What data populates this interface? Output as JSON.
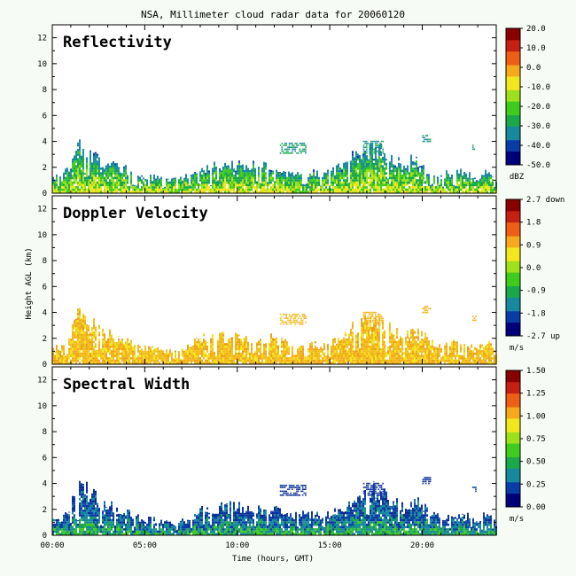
{
  "chart_data": {
    "type": "heatmap",
    "title": "NSA, Millimeter cloud radar data for 20060120",
    "xlabel": "Time (hours, GMT)",
    "ylabel": "Height AGL (km)",
    "xlim": [
      0,
      24
    ],
    "ylim": [
      0,
      13
    ],
    "x_ticks": [
      "00:00",
      "05:00",
      "10:00",
      "15:00",
      "20:00"
    ],
    "x_tick_values": [
      0,
      5,
      10,
      15,
      20
    ],
    "y_ticks": [
      "0",
      "2",
      "4",
      "6",
      "8",
      "10",
      "12"
    ],
    "y_tick_values": [
      0,
      2,
      4,
      6,
      8,
      10,
      12
    ],
    "panels": [
      {
        "name": "Reflectivity",
        "unit": "dBZ",
        "colorbar_labels": [
          "20.0",
          "10.0",
          "0.0",
          "-10.0",
          "-20.0",
          "-30.0",
          "-40.0",
          "-50.0"
        ],
        "range": [
          -50,
          20
        ],
        "colormap": [
          "#00007a",
          "#0a3ca8",
          "#17899e",
          "#1aa84b",
          "#3fcc1c",
          "#9ee01b",
          "#f2e61d",
          "#f6a91b",
          "#ee5f15",
          "#c62012",
          "#8a0000"
        ],
        "colorscheme": "reflectivity"
      },
      {
        "name": "Doppler Velocity",
        "unit": "m/s",
        "colorbar_labels": [
          "2.7 down",
          "1.8",
          "0.9",
          "0.0",
          "-0.9",
          "-1.8",
          "-2.7 up"
        ],
        "range": [
          -2.7,
          2.7
        ],
        "colormap": [
          "#00007a",
          "#0a3ca8",
          "#17899e",
          "#1aa84b",
          "#3fcc1c",
          "#9ee01b",
          "#f2e61d",
          "#f6a91b",
          "#ee5f15",
          "#c62012",
          "#8a0000"
        ],
        "colorscheme": "velocity"
      },
      {
        "name": "Spectral Width",
        "unit": "m/s",
        "colorbar_labels": [
          "1.50",
          "1.25",
          "1.00",
          "0.75",
          "0.50",
          "0.25",
          "0.00"
        ],
        "range": [
          0,
          1.5
        ],
        "colormap": [
          "#00007a",
          "#0a3ca8",
          "#17899e",
          "#1aa84b",
          "#3fcc1c",
          "#9ee01b",
          "#f2e61d",
          "#f6a91b",
          "#ee5f15",
          "#c62012",
          "#8a0000"
        ],
        "colorscheme": "width"
      }
    ],
    "cloud_top_profile_km": [
      [
        0.0,
        1.2
      ],
      [
        0.5,
        1.4
      ],
      [
        1.0,
        2.3
      ],
      [
        1.2,
        3.6
      ],
      [
        1.5,
        3.8
      ],
      [
        2.0,
        3.3
      ],
      [
        2.5,
        2.6
      ],
      [
        3.0,
        2.4
      ],
      [
        3.5,
        2.1
      ],
      [
        4.0,
        1.8
      ],
      [
        4.5,
        1.4
      ],
      [
        5.0,
        1.2
      ],
      [
        5.5,
        1.2
      ],
      [
        6.0,
        1.1
      ],
      [
        6.5,
        1.0
      ],
      [
        7.0,
        1.2
      ],
      [
        7.5,
        1.5
      ],
      [
        8.0,
        2.0
      ],
      [
        8.5,
        2.0
      ],
      [
        9.0,
        2.1
      ],
      [
        9.5,
        2.2
      ],
      [
        10.0,
        2.3
      ],
      [
        10.5,
        2.2
      ],
      [
        11.0,
        2.2
      ],
      [
        11.5,
        2.0
      ],
      [
        12.0,
        2.0
      ],
      [
        12.5,
        1.8
      ],
      [
        13.0,
        1.6
      ],
      [
        13.5,
        1.6
      ],
      [
        14.0,
        1.6
      ],
      [
        14.5,
        1.5
      ],
      [
        15.0,
        1.6
      ],
      [
        15.5,
        2.0
      ],
      [
        16.0,
        2.6
      ],
      [
        16.5,
        3.1
      ],
      [
        17.0,
        3.4
      ],
      [
        17.5,
        3.5
      ],
      [
        18.0,
        3.0
      ],
      [
        18.5,
        2.5
      ],
      [
        19.0,
        2.1
      ],
      [
        19.5,
        2.7
      ],
      [
        20.0,
        2.2
      ],
      [
        20.5,
        1.6
      ],
      [
        21.0,
        1.4
      ],
      [
        21.5,
        1.6
      ],
      [
        22.0,
        1.7
      ],
      [
        22.5,
        1.4
      ],
      [
        23.0,
        1.2
      ],
      [
        23.5,
        1.8
      ],
      [
        24.0,
        0.8
      ]
    ],
    "elevated_cloud_layers_km": [
      {
        "x": [
          12.3,
          13.7
        ],
        "y": [
          3.0,
          3.8
        ]
      },
      {
        "x": [
          16.8,
          17.9
        ],
        "y": [
          3.0,
          4.0
        ]
      },
      {
        "x": [
          20.0,
          20.4
        ],
        "y": [
          3.9,
          4.5
        ]
      },
      {
        "x": [
          22.7,
          22.9
        ],
        "y": [
          3.3,
          3.7
        ]
      }
    ]
  }
}
